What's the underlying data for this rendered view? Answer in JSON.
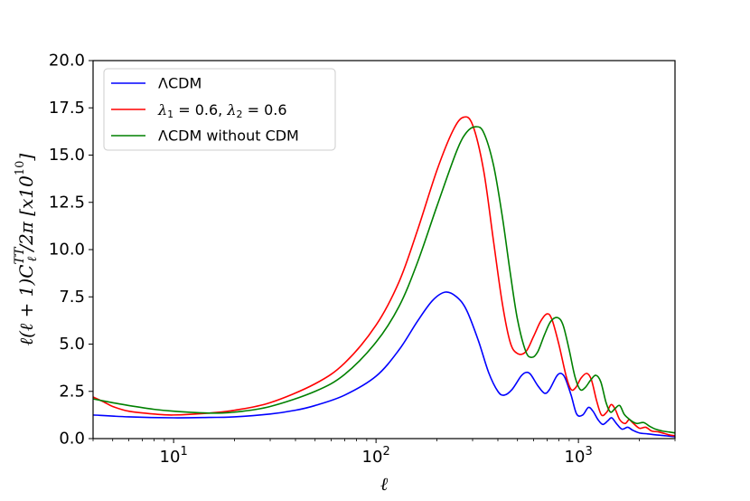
{
  "chart_data": {
    "type": "line",
    "title": "",
    "xlabel": "ℓ",
    "ylabel": "ℓ(ℓ + 1)C_ℓ^TT/2π [x10^10]",
    "xscale": "log",
    "xlim": [
      4,
      3000
    ],
    "ylim": [
      0,
      20
    ],
    "grid": false,
    "legend_position": "top-left",
    "x_ticks": [
      {
        "value": 10,
        "base": "10",
        "exp": "1"
      },
      {
        "value": 100,
        "base": "10",
        "exp": "2"
      },
      {
        "value": 1000,
        "base": "10",
        "exp": "3"
      }
    ],
    "y_ticks": [
      {
        "value": 0,
        "label": "0.0"
      },
      {
        "value": 2.5,
        "label": "2.5"
      },
      {
        "value": 5,
        "label": "5.0"
      },
      {
        "value": 7.5,
        "label": "7.5"
      },
      {
        "value": 10,
        "label": "10.0"
      },
      {
        "value": 12.5,
        "label": "12.5"
      },
      {
        "value": 15,
        "label": "15.0"
      },
      {
        "value": 17.5,
        "label": "17.5"
      },
      {
        "value": 20,
        "label": "20.0"
      }
    ],
    "series": [
      {
        "name": "ΛCDM",
        "color": "#0000ff",
        "points": [
          [
            4,
            1.25
          ],
          [
            6,
            1.15
          ],
          [
            10,
            1.1
          ],
          [
            15,
            1.12
          ],
          [
            20,
            1.15
          ],
          [
            30,
            1.3
          ],
          [
            40,
            1.5
          ],
          [
            50,
            1.75
          ],
          [
            70,
            2.3
          ],
          [
            100,
            3.3
          ],
          [
            130,
            4.7
          ],
          [
            160,
            6.2
          ],
          [
            190,
            7.3
          ],
          [
            220,
            7.75
          ],
          [
            250,
            7.5
          ],
          [
            280,
            6.8
          ],
          [
            320,
            5.2
          ],
          [
            360,
            3.5
          ],
          [
            400,
            2.5
          ],
          [
            430,
            2.3
          ],
          [
            470,
            2.6
          ],
          [
            520,
            3.3
          ],
          [
            550,
            3.5
          ],
          [
            580,
            3.4
          ],
          [
            630,
            2.8
          ],
          [
            680,
            2.4
          ],
          [
            720,
            2.6
          ],
          [
            780,
            3.3
          ],
          [
            820,
            3.45
          ],
          [
            860,
            3.2
          ],
          [
            920,
            2.3
          ],
          [
            980,
            1.3
          ],
          [
            1050,
            1.25
          ],
          [
            1120,
            1.65
          ],
          [
            1180,
            1.45
          ],
          [
            1250,
            1.0
          ],
          [
            1320,
            0.75
          ],
          [
            1400,
            0.95
          ],
          [
            1460,
            1.1
          ],
          [
            1540,
            0.8
          ],
          [
            1640,
            0.5
          ],
          [
            1750,
            0.6
          ],
          [
            1850,
            0.45
          ],
          [
            2000,
            0.3
          ],
          [
            2200,
            0.25
          ],
          [
            2400,
            0.2
          ],
          [
            2700,
            0.15
          ],
          [
            3000,
            0.1
          ]
        ]
      },
      {
        "name": "λ1 = 0.6, λ2 = 0.6",
        "color": "#ff0000",
        "points": [
          [
            4,
            2.2
          ],
          [
            4.5,
            1.95
          ],
          [
            5,
            1.7
          ],
          [
            6,
            1.45
          ],
          [
            8,
            1.3
          ],
          [
            10,
            1.25
          ],
          [
            15,
            1.35
          ],
          [
            20,
            1.5
          ],
          [
            30,
            1.9
          ],
          [
            50,
            2.9
          ],
          [
            70,
            4.0
          ],
          [
            100,
            6.0
          ],
          [
            130,
            8.3
          ],
          [
            160,
            11.0
          ],
          [
            200,
            14.2
          ],
          [
            240,
            16.3
          ],
          [
            270,
            17.0
          ],
          [
            300,
            16.6
          ],
          [
            340,
            14.2
          ],
          [
            380,
            10.5
          ],
          [
            420,
            7.2
          ],
          [
            460,
            5.1
          ],
          [
            500,
            4.5
          ],
          [
            550,
            4.6
          ],
          [
            600,
            5.4
          ],
          [
            650,
            6.2
          ],
          [
            700,
            6.6
          ],
          [
            740,
            6.3
          ],
          [
            800,
            5.0
          ],
          [
            870,
            3.3
          ],
          [
            920,
            2.6
          ],
          [
            970,
            2.7
          ],
          [
            1030,
            3.2
          ],
          [
            1100,
            3.45
          ],
          [
            1160,
            3.1
          ],
          [
            1230,
            2.0
          ],
          [
            1300,
            1.25
          ],
          [
            1380,
            1.4
          ],
          [
            1450,
            1.8
          ],
          [
            1520,
            1.55
          ],
          [
            1600,
            1.0
          ],
          [
            1700,
            0.8
          ],
          [
            1780,
            1.0
          ],
          [
            1850,
            0.85
          ],
          [
            2000,
            0.55
          ],
          [
            2150,
            0.6
          ],
          [
            2300,
            0.4
          ],
          [
            2500,
            0.35
          ],
          [
            2800,
            0.2
          ],
          [
            3000,
            0.15
          ]
        ]
      },
      {
        "name": "ΛCDM without CDM",
        "color": "#008000",
        "points": [
          [
            4,
            2.1
          ],
          [
            5,
            1.9
          ],
          [
            6,
            1.75
          ],
          [
            8,
            1.55
          ],
          [
            10,
            1.45
          ],
          [
            15,
            1.35
          ],
          [
            20,
            1.4
          ],
          [
            30,
            1.7
          ],
          [
            50,
            2.5
          ],
          [
            70,
            3.4
          ],
          [
            100,
            5.1
          ],
          [
            130,
            7.0
          ],
          [
            160,
            9.3
          ],
          [
            200,
            12.3
          ],
          [
            250,
            15.2
          ],
          [
            280,
            16.2
          ],
          [
            310,
            16.5
          ],
          [
            340,
            16.2
          ],
          [
            380,
            14.5
          ],
          [
            420,
            11.8
          ],
          [
            460,
            8.8
          ],
          [
            500,
            6.3
          ],
          [
            550,
            4.6
          ],
          [
            590,
            4.3
          ],
          [
            630,
            4.6
          ],
          [
            680,
            5.5
          ],
          [
            730,
            6.2
          ],
          [
            790,
            6.4
          ],
          [
            840,
            6.0
          ],
          [
            900,
            4.7
          ],
          [
            960,
            3.3
          ],
          [
            1020,
            2.6
          ],
          [
            1080,
            2.7
          ],
          [
            1150,
            3.1
          ],
          [
            1220,
            3.35
          ],
          [
            1290,
            3.0
          ],
          [
            1370,
            1.9
          ],
          [
            1440,
            1.4
          ],
          [
            1520,
            1.6
          ],
          [
            1600,
            1.75
          ],
          [
            1680,
            1.3
          ],
          [
            1750,
            1.1
          ],
          [
            1850,
            0.9
          ],
          [
            1950,
            0.8
          ],
          [
            2100,
            0.85
          ],
          [
            2250,
            0.65
          ],
          [
            2400,
            0.5
          ],
          [
            2600,
            0.4
          ],
          [
            2800,
            0.35
          ],
          [
            3000,
            0.3
          ]
        ]
      }
    ]
  }
}
